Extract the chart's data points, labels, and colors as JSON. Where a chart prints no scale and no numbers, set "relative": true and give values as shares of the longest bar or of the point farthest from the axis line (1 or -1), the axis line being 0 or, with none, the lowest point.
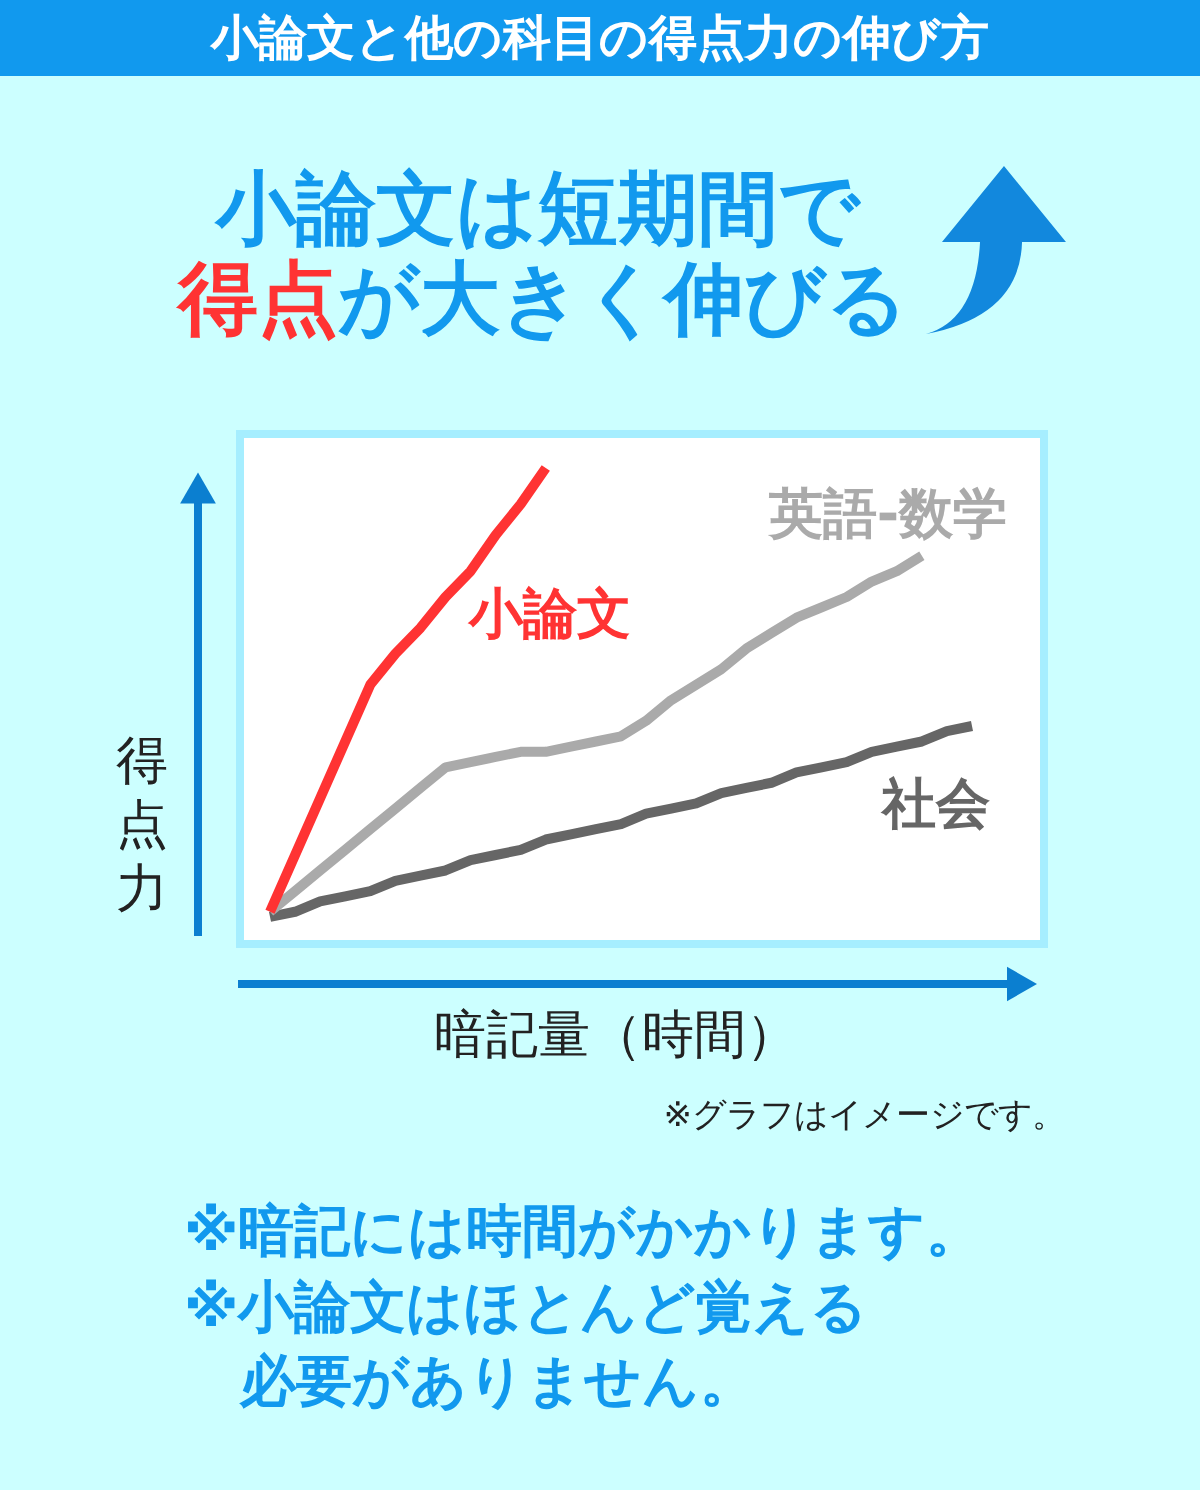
{
  "chart_data": {
    "type": "line",
    "title": "小論文と他の科目の得点力の伸び方",
    "subtitle": "小論文は短期間で得点が大きく伸びる",
    "xlabel": "暗記量（時間）",
    "ylabel": "得点力",
    "relative": true,
    "marker": "none",
    "line_style": "solid",
    "categories": [
      null,
      null,
      null,
      null,
      null,
      null,
      null,
      null,
      null,
      null,
      null,
      null,
      null,
      null,
      null,
      null,
      null,
      null,
      null,
      null,
      null,
      null,
      null,
      null,
      null,
      null,
      null,
      null,
      null
    ],
    "series": [
      {
        "name": "小論文",
        "color": "#ff3333",
        "values": [
          0.14,
          0.25,
          0.36,
          0.47,
          0.58,
          0.64,
          0.69,
          0.75,
          0.8,
          0.87,
          0.93,
          1,
          null,
          null,
          null,
          null,
          null,
          null,
          null,
          null,
          null,
          null,
          null,
          null,
          null,
          null,
          null,
          null,
          null
        ]
      },
      {
        "name": "英語-数学",
        "color": "#aaaaaa",
        "values": [
          0.14,
          0.18,
          0.22,
          0.26,
          0.3,
          0.34,
          0.38,
          0.42,
          0.43,
          0.44,
          0.45,
          0.45,
          0.46,
          0.47,
          0.48,
          0.51,
          0.55,
          0.58,
          0.61,
          0.65,
          0.68,
          0.71,
          0.73,
          0.75,
          0.78,
          0.8,
          0.83,
          null,
          null
        ]
      },
      {
        "name": "社会",
        "color": "#666666",
        "values": [
          0.13,
          0.14,
          0.16,
          0.17,
          0.18,
          0.2,
          0.21,
          0.22,
          0.24,
          0.25,
          0.26,
          0.28,
          0.29,
          0.3,
          0.31,
          0.33,
          0.34,
          0.35,
          0.37,
          0.38,
          0.39,
          0.41,
          0.42,
          0.43,
          0.45,
          0.46,
          0.47,
          0.49,
          0.5
        ]
      }
    ],
    "annotations": [
      "※グラフはイメージです。",
      "※暗記には時間がかかります。",
      "※小論文はほとんど覚える必要がありません。"
    ]
  }
}
